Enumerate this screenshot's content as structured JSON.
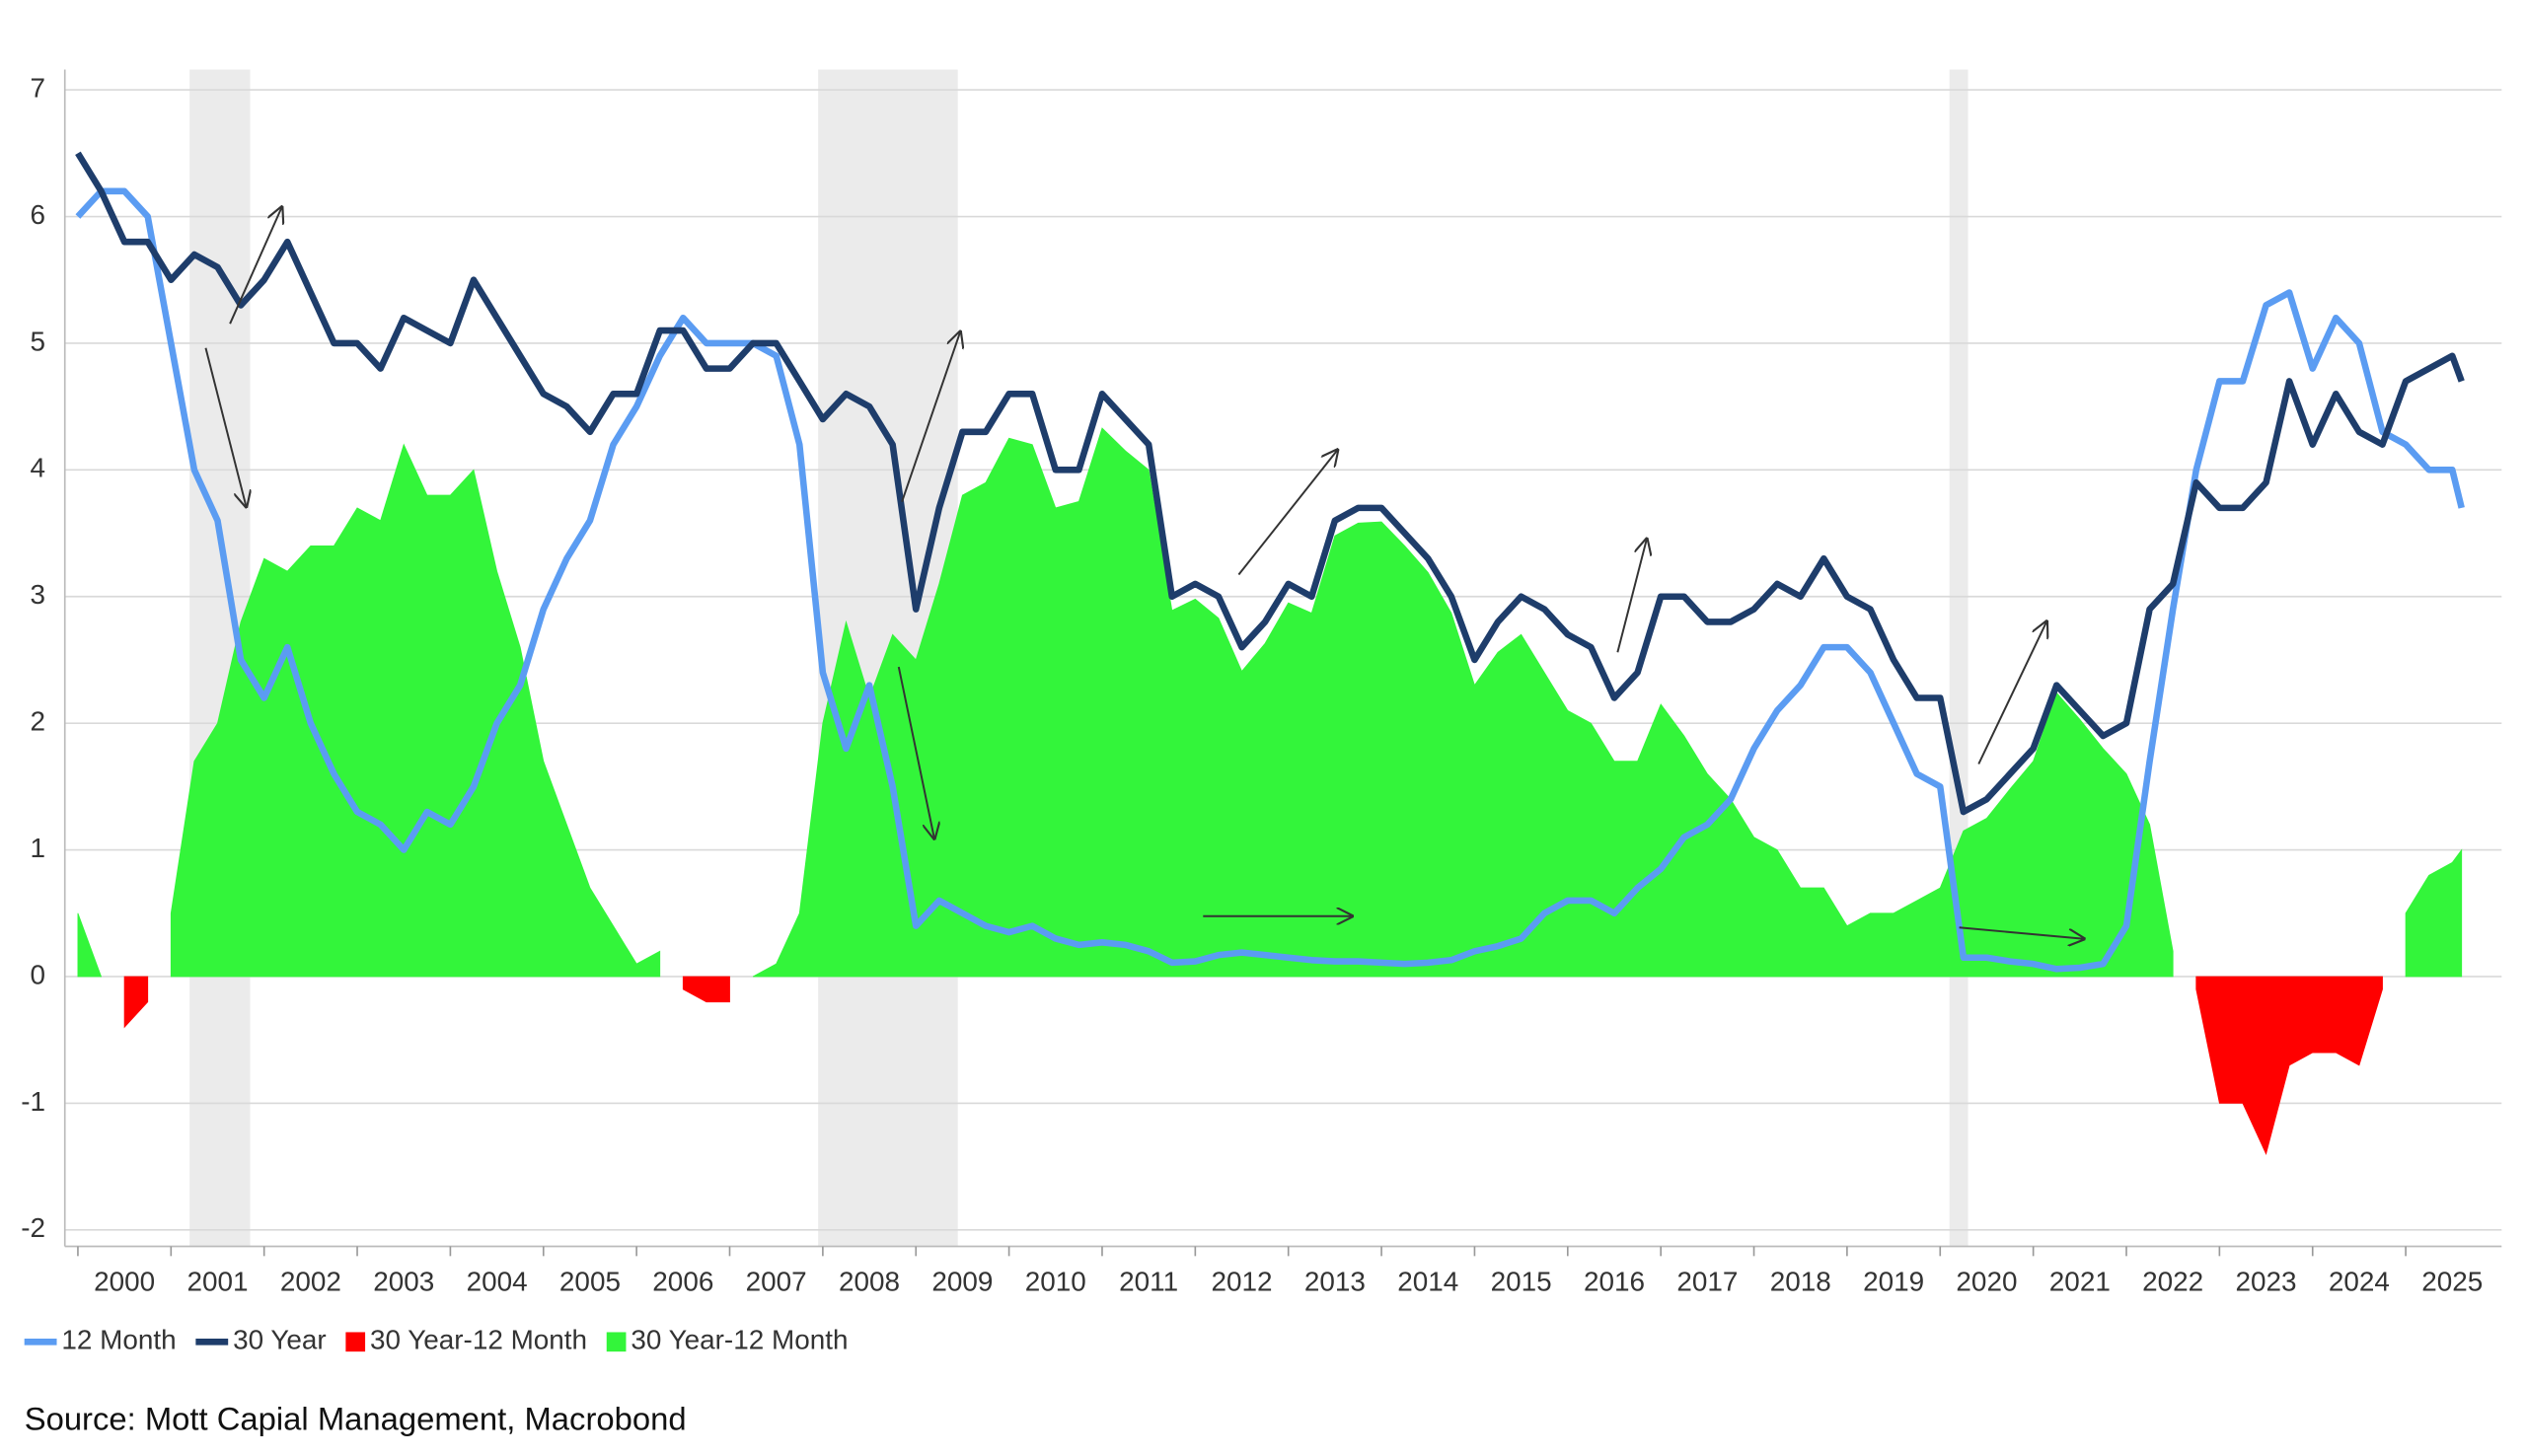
{
  "chart_data": {
    "type": "line-area",
    "source": "Source: Mott Capial Management, Macrobond",
    "x": [
      2000,
      2000.25,
      2000.5,
      2000.75,
      2001,
      2001.25,
      2001.5,
      2001.75,
      2002,
      2002.25,
      2002.5,
      2002.75,
      2003,
      2003.25,
      2003.5,
      2003.75,
      2004,
      2004.25,
      2004.5,
      2004.75,
      2005,
      2005.25,
      2005.5,
      2005.75,
      2006,
      2006.25,
      2006.5,
      2006.75,
      2007,
      2007.25,
      2007.5,
      2007.75,
      2008,
      2008.25,
      2008.5,
      2008.75,
      2009,
      2009.25,
      2009.5,
      2009.75,
      2010,
      2010.25,
      2010.5,
      2010.75,
      2011,
      2011.25,
      2011.5,
      2011.75,
      2012,
      2012.25,
      2012.5,
      2012.75,
      2013,
      2013.25,
      2013.5,
      2013.75,
      2014,
      2014.25,
      2014.5,
      2014.75,
      2015,
      2015.25,
      2015.5,
      2015.75,
      2016,
      2016.25,
      2016.5,
      2016.75,
      2017,
      2017.25,
      2017.5,
      2017.75,
      2018,
      2018.25,
      2018.5,
      2018.75,
      2019,
      2019.25,
      2019.5,
      2019.75,
      2020,
      2020.25,
      2020.5,
      2020.75,
      2021,
      2021.25,
      2021.5,
      2021.75,
      2022,
      2022.25,
      2022.5,
      2022.75,
      2023,
      2023.25,
      2023.5,
      2023.75,
      2024,
      2024.25,
      2024.5,
      2024.75,
      2025,
      2025.25,
      2025.5,
      2025.6
    ],
    "series": [
      {
        "name": "12 Month",
        "kind": "line",
        "color": "#5b9cf2",
        "values": [
          6.0,
          6.2,
          6.2,
          6.0,
          5.0,
          4.0,
          3.6,
          2.5,
          2.2,
          2.6,
          2.0,
          1.6,
          1.3,
          1.2,
          1.0,
          1.3,
          1.2,
          1.5,
          2.0,
          2.3,
          2.9,
          3.3,
          3.6,
          4.2,
          4.5,
          4.9,
          5.2,
          5.0,
          5.0,
          5.0,
          4.9,
          4.2,
          2.4,
          1.8,
          2.3,
          1.5,
          0.4,
          0.6,
          0.5,
          0.4,
          0.35,
          0.4,
          0.3,
          0.25,
          0.27,
          0.25,
          0.2,
          0.11,
          0.12,
          0.17,
          0.19,
          0.17,
          0.15,
          0.13,
          0.12,
          0.12,
          0.11,
          0.1,
          0.11,
          0.13,
          0.2,
          0.24,
          0.3,
          0.5,
          0.6,
          0.6,
          0.5,
          0.7,
          0.85,
          1.1,
          1.2,
          1.4,
          1.8,
          2.1,
          2.3,
          2.6,
          2.6,
          2.4,
          2.0,
          1.6,
          1.5,
          0.15,
          0.15,
          0.12,
          0.1,
          0.06,
          0.07,
          0.1,
          0.4,
          1.7,
          2.9,
          4.0,
          4.7,
          4.7,
          5.3,
          5.4,
          4.8,
          5.2,
          5.0,
          4.3,
          4.2,
          4.0,
          4.0,
          3.7
        ]
      },
      {
        "name": "30 Year",
        "kind": "line",
        "color": "#1e3d6b",
        "values": [
          6.5,
          6.2,
          5.8,
          5.8,
          5.5,
          5.7,
          5.6,
          5.3,
          5.5,
          5.8,
          5.4,
          5.0,
          5.0,
          4.8,
          5.2,
          5.1,
          5.0,
          5.5,
          5.2,
          4.9,
          4.6,
          4.5,
          4.3,
          4.6,
          4.6,
          5.1,
          5.1,
          4.8,
          4.8,
          5.0,
          5.0,
          4.7,
          4.4,
          4.6,
          4.5,
          4.2,
          2.9,
          3.7,
          4.3,
          4.3,
          4.6,
          4.6,
          4.0,
          4.0,
          4.6,
          4.4,
          4.2,
          3.0,
          3.1,
          3.0,
          2.6,
          2.8,
          3.1,
          3.0,
          3.6,
          3.7,
          3.7,
          3.5,
          3.3,
          3.0,
          2.5,
          2.8,
          3.0,
          2.9,
          2.7,
          2.6,
          2.2,
          2.4,
          3.0,
          3.0,
          2.8,
          2.8,
          2.9,
          3.1,
          3.0,
          3.3,
          3.0,
          2.9,
          2.5,
          2.2,
          2.2,
          1.3,
          1.4,
          1.6,
          1.8,
          2.3,
          2.1,
          1.9,
          2.0,
          2.9,
          3.1,
          3.9,
          3.7,
          3.7,
          3.9,
          4.7,
          4.2,
          4.6,
          4.3,
          4.2,
          4.7,
          4.8,
          4.9,
          4.7
        ]
      },
      {
        "name": "30 Year-12 Month",
        "kind": "area",
        "color": "#ff0000",
        "values": [
          null,
          null,
          -0.4,
          -0.2,
          null,
          null,
          null,
          null,
          null,
          null,
          null,
          null,
          null,
          null,
          null,
          null,
          null,
          null,
          null,
          null,
          null,
          null,
          null,
          null,
          null,
          null,
          -0.1,
          -0.2,
          -0.2,
          null,
          null,
          null,
          null,
          null,
          null,
          null,
          null,
          null,
          null,
          null,
          null,
          null,
          null,
          null,
          null,
          null,
          null,
          null,
          null,
          null,
          null,
          null,
          null,
          null,
          null,
          null,
          null,
          null,
          null,
          null,
          null,
          null,
          null,
          null,
          null,
          null,
          null,
          null,
          null,
          null,
          null,
          null,
          null,
          null,
          null,
          null,
          null,
          null,
          null,
          null,
          null,
          null,
          null,
          null,
          null,
          null,
          null,
          null,
          null,
          null,
          null,
          -0.1,
          -1.0,
          -1.0,
          -1.4,
          -0.7,
          -0.6,
          -0.6,
          -0.7,
          -0.1,
          null,
          null,
          null,
          null
        ]
      },
      {
        "name": "30 Year-12 Month",
        "kind": "area",
        "color": "#33f53a",
        "values": [
          0.5,
          0.0,
          null,
          null,
          0.5,
          1.7,
          2.0,
          2.8,
          3.3,
          3.2,
          3.4,
          3.4,
          3.7,
          3.6,
          4.2,
          3.8,
          3.8,
          4.0,
          3.2,
          2.6,
          1.7,
          1.2,
          0.7,
          0.4,
          0.1,
          0.2,
          null,
          null,
          null,
          0.0,
          0.1,
          0.5,
          2.0,
          2.8,
          2.2,
          2.7,
          2.5,
          3.1,
          3.8,
          3.9,
          4.25,
          4.2,
          3.7,
          3.75,
          4.33,
          4.15,
          4.0,
          2.89,
          2.98,
          2.83,
          2.41,
          2.63,
          2.95,
          2.87,
          3.48,
          3.58,
          3.59,
          3.4,
          3.19,
          2.87,
          2.3,
          2.56,
          2.7,
          2.4,
          2.1,
          2.0,
          1.7,
          1.7,
          2.15,
          1.9,
          1.6,
          1.4,
          1.1,
          1.0,
          0.7,
          0.7,
          0.4,
          0.5,
          0.5,
          0.6,
          0.7,
          1.15,
          1.25,
          1.48,
          1.7,
          2.24,
          2.03,
          1.8,
          1.6,
          1.2,
          0.2,
          null,
          null,
          null,
          null,
          null,
          null,
          null,
          null,
          null,
          0.5,
          0.8,
          0.9,
          1.0
        ]
      }
    ],
    "shaded_periods": [
      [
        2001.2,
        2001.85
      ],
      [
        2007.95,
        2009.45
      ],
      [
        2020.1,
        2020.3
      ]
    ],
    "xlim": [
      1999.86,
      2026.03
    ],
    "xticks": [
      2000,
      2001,
      2002,
      2003,
      2004,
      2005,
      2006,
      2007,
      2008,
      2009,
      2010,
      2011,
      2012,
      2013,
      2014,
      2015,
      2016,
      2017,
      2018,
      2019,
      2020,
      2021,
      2022,
      2023,
      2024,
      2025
    ],
    "ylim": [
      -2.13,
      7.16
    ],
    "yticks": [
      -2,
      -1,
      0,
      1,
      2,
      3,
      4,
      5,
      6,
      7
    ],
    "grid": true,
    "legend": "bottom-left"
  }
}
